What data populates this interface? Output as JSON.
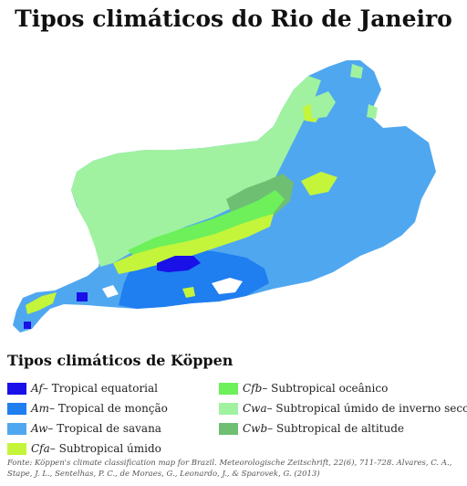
{
  "title": "Tipos climáticos do Rio de Janeiro",
  "legend": {
    "title": "Tipos climáticos de Köppen",
    "items": [
      {
        "code": "Af",
        "label": " – Tropical equatorial",
        "color": "#1a10e8"
      },
      {
        "code": "Am",
        "label": " – Tropical de monção",
        "color": "#1f7ef0"
      },
      {
        "code": "Aw",
        "label": " – Tropical de savana",
        "color": "#4fa7f0"
      },
      {
        "code": "Cfa",
        "label": " – Subtropical úmido",
        "color": "#c4f53a"
      },
      {
        "code": "Cfb",
        "label": " – Subtropical oceânico",
        "color": "#6df05a"
      },
      {
        "code": "Cwa",
        "label": " – Subtropical úmido de inverno seco",
        "color": "#a0f2a0"
      },
      {
        "code": "Cwb",
        "label": " – Subtropical de altitude",
        "color": "#6ebf72"
      }
    ]
  },
  "source": "Fonte: Köppen's climate classification map for Brazil. Meteorologische Zeitschrift, 22(6), 711-728. Alvares, C. A., Stape, J. L., Sentelhas, P. C., de Moraes, G., Leonardo, J., & Sparovek, G. (2013)"
}
